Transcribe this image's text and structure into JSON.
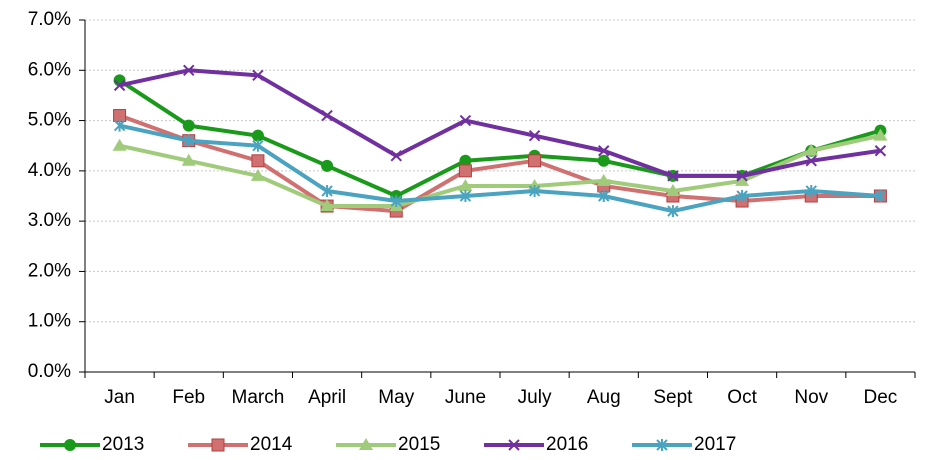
{
  "chart_data": {
    "type": "line",
    "categories": [
      "Jan",
      "Feb",
      "March",
      "April",
      "May",
      "June",
      "July",
      "Aug",
      "Sept",
      "Oct",
      "Nov",
      "Dec"
    ],
    "series": [
      {
        "name": "2013",
        "color": "#1a9a1a",
        "marker": "circle",
        "values": [
          5.8,
          4.9,
          4.7,
          4.1,
          3.5,
          4.2,
          4.3,
          4.2,
          3.9,
          3.9,
          4.4,
          4.8
        ]
      },
      {
        "name": "2014",
        "color": "#d07070",
        "marker": "square",
        "values": [
          5.1,
          4.6,
          4.2,
          3.3,
          3.2,
          4.0,
          4.2,
          3.7,
          3.5,
          3.4,
          3.5,
          3.5
        ]
      },
      {
        "name": "2015",
        "color": "#9fcb7a",
        "marker": "triangle",
        "values": [
          4.5,
          4.2,
          3.9,
          3.3,
          3.3,
          3.7,
          3.7,
          3.8,
          3.6,
          3.8,
          4.4,
          4.7
        ]
      },
      {
        "name": "2016",
        "color": "#7030a0",
        "marker": "x",
        "values": [
          5.7,
          6.0,
          5.9,
          5.1,
          4.3,
          5.0,
          4.7,
          4.4,
          3.9,
          3.9,
          4.2,
          4.4
        ]
      },
      {
        "name": "2017",
        "color": "#4aa3c0",
        "marker": "star",
        "values": [
          4.9,
          4.6,
          4.5,
          3.6,
          3.4,
          3.5,
          3.6,
          3.5,
          3.2,
          3.5,
          3.6,
          3.5
        ]
      }
    ],
    "ylim": [
      0,
      7
    ],
    "yticks": [
      {
        "value": 0,
        "label": "0.0%"
      },
      {
        "value": 1,
        "label": "1.0%"
      },
      {
        "value": 2,
        "label": "2.0%"
      },
      {
        "value": 3,
        "label": "3.0%"
      },
      {
        "value": 4,
        "label": "4.0%"
      },
      {
        "value": 5,
        "label": "5.0%"
      },
      {
        "value": 6,
        "label": "6.0%"
      },
      {
        "value": 7,
        "label": "7.0%"
      }
    ],
    "grid": true,
    "legend": "bottom"
  }
}
